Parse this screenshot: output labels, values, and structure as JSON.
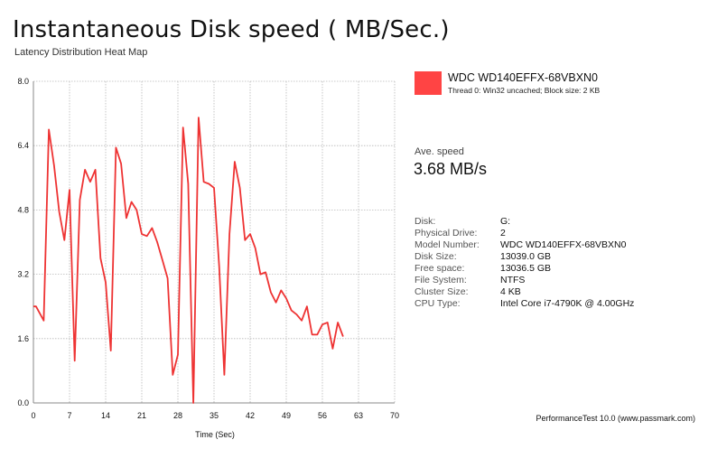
{
  "header": {
    "title": "Instantaneous Disk speed ( MB/Sec.)",
    "subtitle": "Latency Distribution Heat Map"
  },
  "legend": {
    "name": "WDC WD140EFFX-68VBXN0",
    "detail": "Thread 0: Win32 uncached; Block size: 2 KB",
    "color": "#ff4444"
  },
  "average": {
    "label": "Ave. speed",
    "value": "3.68 MB/s"
  },
  "info": [
    {
      "key": "Disk:",
      "value": "G:"
    },
    {
      "key": "Physical Drive:",
      "value": "2"
    },
    {
      "key": "Model Number:",
      "value": "WDC WD140EFFX-68VBXN0"
    },
    {
      "key": "Disk Size:",
      "value": "13039.0 GB"
    },
    {
      "key": "Free space:",
      "value": "13036.5 GB"
    },
    {
      "key": "File System:",
      "value": "NTFS"
    },
    {
      "key": "Cluster Size:",
      "value": "4 KB"
    },
    {
      "key": "CPU Type:",
      "value": "Intel Core i7-4790K @ 4.00GHz"
    }
  ],
  "footer": "PerformanceTest 10.0 (www.passmark.com)",
  "chart_data": {
    "type": "line",
    "title": "Instantaneous Disk speed ( MB/Sec.)",
    "subtitle": "Latency Distribution Heat Map",
    "xlabel": "Time (Sec)",
    "ylabel": "",
    "xlim": [
      0,
      70
    ],
    "ylim": [
      0,
      8
    ],
    "x_ticks": [
      "0",
      "7",
      "14",
      "21",
      "28",
      "35",
      "42",
      "49",
      "56",
      "63",
      "70"
    ],
    "y_ticks": [
      "0.0",
      "1.6",
      "3.2",
      "4.8",
      "6.4",
      "8.0"
    ],
    "grid": true,
    "line_color": "#ee3333",
    "series": [
      {
        "name": "WDC WD140EFFX-68VBXN0",
        "x": [
          0,
          0.5,
          2,
          3,
          4,
          5,
          6,
          7,
          8,
          9,
          10,
          11,
          12,
          13,
          14,
          15,
          16,
          17,
          18,
          19,
          20,
          21,
          22,
          23,
          24,
          25,
          26,
          27,
          28,
          29,
          30,
          31,
          32,
          33,
          34,
          35,
          36,
          37,
          38,
          39,
          40,
          41,
          42,
          43,
          44,
          45,
          46,
          47,
          48,
          49,
          50,
          51,
          52,
          53,
          54,
          55,
          56,
          57,
          58,
          59,
          60
        ],
        "y": [
          2.4,
          2.4,
          2.05,
          6.8,
          5.9,
          4.75,
          4.05,
          5.3,
          1.05,
          5.05,
          5.8,
          5.5,
          5.8,
          3.6,
          3.0,
          1.3,
          6.35,
          5.95,
          4.6,
          5.0,
          4.8,
          4.2,
          4.15,
          4.35,
          4.0,
          3.55,
          3.1,
          0.7,
          1.2,
          6.85,
          5.45,
          0.0,
          7.1,
          5.5,
          5.45,
          5.35,
          3.4,
          0.7,
          4.2,
          6.0,
          5.35,
          4.05,
          4.2,
          3.85,
          3.2,
          3.25,
          2.75,
          2.5,
          2.8,
          2.6,
          2.3,
          2.2,
          2.05,
          2.4,
          1.7,
          1.7,
          1.95,
          2.0,
          1.35,
          2.0,
          1.65
        ]
      }
    ]
  }
}
